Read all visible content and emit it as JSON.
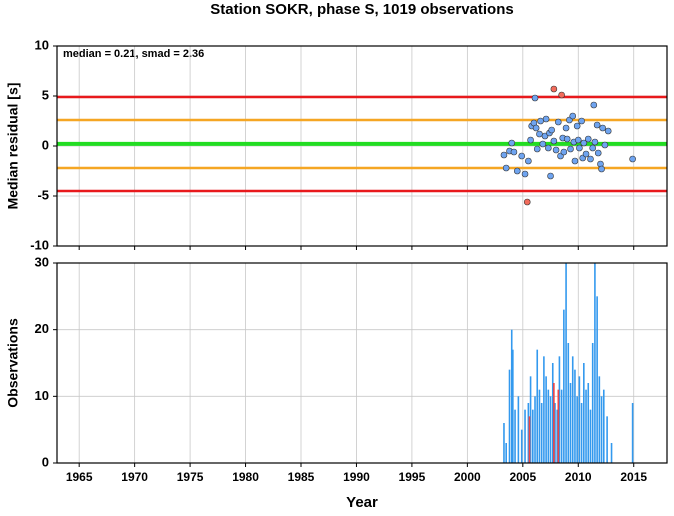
{
  "chart_data": [
    {
      "type": "scatter",
      "title": "Station SOKR, phase S, 1019 observations",
      "ylabel": "Median residual [s]",
      "annotation": "median = 0.21, smad = 2.36",
      "xlim": [
        1963,
        2018
      ],
      "xticks": [
        1965,
        1970,
        1975,
        1980,
        1985,
        1990,
        1995,
        2000,
        2005,
        2010,
        2015
      ],
      "ylim": [
        -10,
        10
      ],
      "yticks": [
        -10,
        -5,
        0,
        5,
        10
      ],
      "grid": true,
      "reference_lines": [
        {
          "value": 4.9,
          "color": "#e8191c"
        },
        {
          "value": 2.6,
          "color": "#f5a623"
        },
        {
          "value": 0.21,
          "color": "#22dd22"
        },
        {
          "value": -2.2,
          "color": "#f5a623"
        },
        {
          "value": -4.5,
          "color": "#e8191c"
        }
      ],
      "series": [
        {
          "color": "#6fa4f0",
          "x": [
            2003.3,
            2003.5,
            2003.8,
            2004.0,
            2004.2,
            2004.5,
            2004.9,
            2005.2,
            2005.5,
            2005.7,
            2005.8,
            2006.0,
            2006.1,
            2006.2,
            2006.3,
            2006.5,
            2006.6,
            2006.8,
            2007.0,
            2007.1,
            2007.3,
            2007.4,
            2007.5,
            2007.6,
            2007.8,
            2008.0,
            2008.2,
            2008.4,
            2008.6,
            2008.7,
            2008.9,
            2009.0,
            2009.2,
            2009.3,
            2009.5,
            2009.6,
            2009.7,
            2009.9,
            2010.0,
            2010.1,
            2010.3,
            2010.4,
            2010.5,
            2010.7,
            2010.9,
            2011.1,
            2011.3,
            2011.4,
            2011.5,
            2011.7,
            2011.8,
            2012.0,
            2012.1,
            2012.2,
            2012.4,
            2012.7,
            2014.9
          ],
          "values": [
            -0.9,
            -2.2,
            -0.5,
            0.3,
            -0.6,
            -2.5,
            -1.0,
            -2.8,
            -1.5,
            0.6,
            2.0,
            2.3,
            4.8,
            1.8,
            -0.3,
            1.2,
            2.5,
            0.2,
            1.0,
            2.7,
            -0.2,
            1.3,
            -3.0,
            1.6,
            0.5,
            -0.4,
            2.4,
            -1.0,
            0.8,
            -0.6,
            1.8,
            0.7,
            2.6,
            -0.3,
            3.0,
            0.4,
            -1.5,
            2.0,
            0.6,
            -0.2,
            2.5,
            -1.2,
            0.3,
            -0.8,
            0.7,
            -1.3,
            -0.2,
            4.1,
            0.4,
            2.1,
            -0.7,
            -1.8,
            -2.3,
            1.8,
            0.1,
            1.5,
            -1.3
          ]
        },
        {
          "color": "#f26b5b",
          "x": [
            2007.8,
            2008.5,
            2005.4
          ],
          "values": [
            5.7,
            5.1,
            -5.6
          ]
        }
      ]
    },
    {
      "type": "bar",
      "xlabel": "Year",
      "ylabel": "Observations",
      "xlim": [
        1963,
        2018
      ],
      "xticks": [
        1965,
        1970,
        1975,
        1980,
        1985,
        1990,
        1995,
        2000,
        2005,
        2010,
        2015
      ],
      "ylim": [
        0,
        30
      ],
      "yticks": [
        0,
        10,
        20,
        30
      ],
      "grid": true,
      "series": [
        {
          "color": "#3399ee",
          "x": [
            2003.3,
            2003.5,
            2003.8,
            2004.0,
            2004.1,
            2004.3,
            2004.6,
            2004.9,
            2005.2,
            2005.5,
            2005.7,
            2005.9,
            2006.1,
            2006.3,
            2006.5,
            2006.7,
            2006.9,
            2007.1,
            2007.3,
            2007.5,
            2007.7,
            2007.9,
            2008.1,
            2008.3,
            2008.5,
            2008.7,
            2008.9,
            2009.1,
            2009.3,
            2009.5,
            2009.7,
            2009.9,
            2010.1,
            2010.3,
            2010.5,
            2010.7,
            2010.9,
            2011.1,
            2011.3,
            2011.5,
            2011.7,
            2011.9,
            2012.1,
            2012.3,
            2012.6,
            2013.0,
            2014.9
          ],
          "values": [
            6,
            3,
            14,
            20,
            17,
            8,
            10,
            5,
            8,
            9,
            13,
            8,
            10,
            17,
            11,
            9,
            16,
            13,
            11,
            10,
            15,
            9,
            8,
            16,
            11,
            23,
            30,
            18,
            12,
            16,
            14,
            10,
            13,
            9,
            15,
            11,
            12,
            8,
            18,
            30,
            25,
            13,
            10,
            11,
            7,
            3,
            9
          ]
        },
        {
          "color": "#ee4444",
          "x": [
            2005.6,
            2007.8,
            2008.2
          ],
          "values": [
            7,
            12,
            11
          ]
        }
      ]
    }
  ]
}
